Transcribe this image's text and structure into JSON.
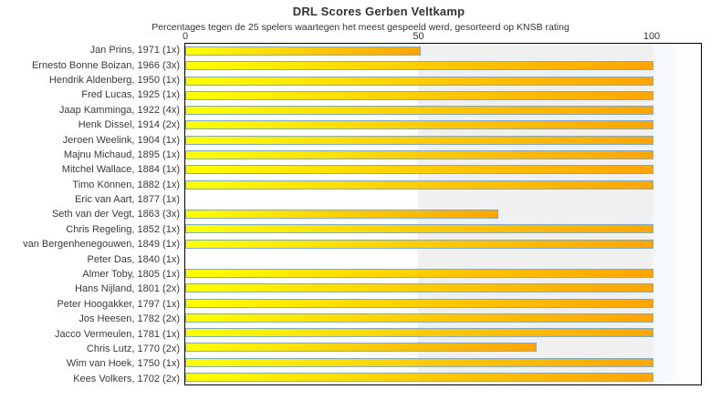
{
  "title": "DRL Scores Gerben Veltkamp",
  "subtitle": "Percentages tegen de 25 spelers waartegen het meest gespeeld werd, gesorteerd op KNSB rating",
  "chart_data": {
    "type": "bar",
    "orientation": "horizontal",
    "title": "DRL Scores Gerben Veltkamp",
    "subtitle": "Percentages tegen de 25 spelers waartegen het meest gespeeld werd, gesorteerd op KNSB rating",
    "categories": [
      "Jan Prins, 1971 (1x)",
      "Ernesto Bonne Boizan, 1966 (3x)",
      "Hendrik Aldenberg, 1950 (1x)",
      "Fred Lucas, 1925 (1x)",
      "Jaap Kamminga, 1922 (4x)",
      "Henk Dissel, 1914 (2x)",
      "Jeroen Weelink, 1904 (1x)",
      "Majnu Michaud, 1895 (1x)",
      "Mitchel Wallace, 1884 (1x)",
      "Timo Können, 1882 (1x)",
      "Eric van Aart, 1877 (1x)",
      "Seth van der Vegt, 1863 (3x)",
      "Chris Regeling, 1852 (1x)",
      "van Bergenhenegouwen, 1849 (1x)",
      "Peter Das, 1840 (1x)",
      "Almer Toby, 1805 (1x)",
      "Hans Nijland, 1801 (2x)",
      "Peter Hoogakker, 1797 (1x)",
      "Jos Heesen, 1782 (2x)",
      "Jacco Vermeulen, 1781 (1x)",
      "Chris Lutz, 1770 (2x)",
      "Wim van Hoek, 1750 (1x)",
      "Kees Volkers, 1702 (2x)"
    ],
    "values": [
      50,
      100,
      100,
      100,
      100,
      100,
      100,
      100,
      100,
      100,
      0,
      66.7,
      100,
      100,
      0,
      100,
      100,
      100,
      100,
      100,
      75,
      100,
      100
    ],
    "xlabel": "",
    "ylabel": "",
    "xlim": [
      0,
      110
    ],
    "x_ticks": [
      0,
      50,
      100
    ],
    "x_tick_labels": [
      "0",
      "50",
      "100"
    ],
    "grid": false,
    "legend": "none",
    "bar_color_start": "#ffff00",
    "bar_color_mid": "#ffc800",
    "bar_color_end": "#ffa500",
    "bar_border_color": "#7faacc",
    "band_color": "#f0f0f0",
    "plot_border_color": "#000000"
  }
}
